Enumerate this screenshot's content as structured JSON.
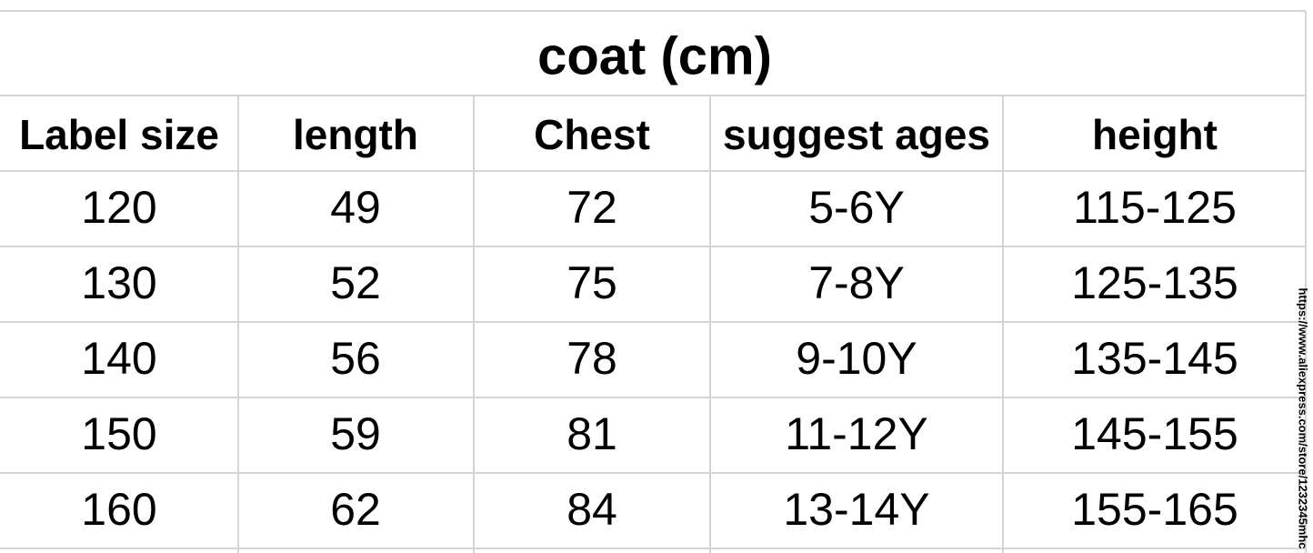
{
  "title": "coat (cm)",
  "table": {
    "header": [
      "Label size",
      "length",
      "Chest",
      "suggest ages",
      "height"
    ],
    "rows": [
      [
        "120",
        "49",
        "72",
        "5-6Y",
        "115-125"
      ],
      [
        "130",
        "52",
        "75",
        "7-8Y",
        "125-135"
      ],
      [
        "140",
        "56",
        "78",
        "9-10Y",
        "135-145"
      ],
      [
        "150",
        "59",
        "81",
        "11-12Y",
        "145-155"
      ],
      [
        "160",
        "62",
        "84",
        "13-14Y",
        "155-165"
      ]
    ]
  },
  "watermark": "https://www.aliexpress.com/store/1232345mhc"
}
